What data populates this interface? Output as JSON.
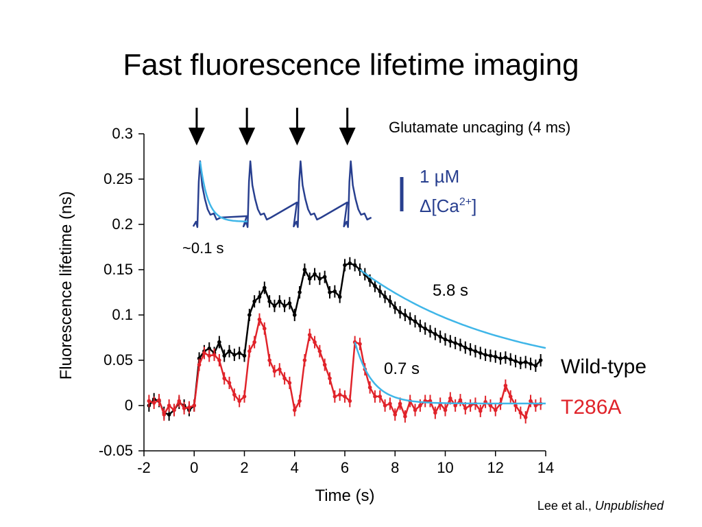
{
  "title": "Fast fluorescence lifetime imaging",
  "citation": {
    "authors": "Lee et al.,",
    "status": "Unpublished"
  },
  "colors": {
    "wild_type": "#000000",
    "t286a": "#e0232a",
    "calcium": "#283f8f",
    "fit": "#3fb6e8"
  },
  "chart_data": {
    "type": "line",
    "xlabel": "Time (s)",
    "ylabel": "Fluorescence lifetime (ns)",
    "xlim": [
      -2,
      14
    ],
    "ylim": [
      -0.05,
      0.3
    ],
    "xticks": [
      "-2",
      "0",
      "2",
      "4",
      "6",
      "8",
      "10",
      "12",
      "14"
    ],
    "yticks": [
      "-0.05",
      "0",
      "0.05",
      "0.1",
      "0.15",
      "0.2",
      "0.25",
      "0.3"
    ],
    "stimulus_label": "Glutamate uncaging (4 ms)",
    "stimulus_times": [
      0.1,
      2.1,
      4.1,
      6.1
    ],
    "calcium_scale": {
      "line1": "1 µM",
      "line2_prefix": "Δ[Ca",
      "line2_sup": "2+",
      "line2_suffix": "]"
    },
    "annotations": {
      "inset_time": "~0.1 s",
      "wt_tau": "5.8 s",
      "t286a_tau": "0.7 s"
    },
    "series": [
      {
        "name": "Wild-type",
        "color": "#000000",
        "x": [
          -1.8,
          -1.6,
          -1.4,
          -1.2,
          -1.0,
          -0.8,
          -0.6,
          -0.4,
          -0.2,
          0.0,
          0.2,
          0.4,
          0.6,
          0.8,
          1.0,
          1.2,
          1.4,
          1.6,
          1.8,
          2.0,
          2.2,
          2.4,
          2.6,
          2.8,
          3.0,
          3.2,
          3.4,
          3.6,
          3.8,
          4.0,
          4.2,
          4.4,
          4.6,
          4.8,
          5.0,
          5.2,
          5.4,
          5.6,
          5.8,
          6.0,
          6.2,
          6.4,
          6.6,
          6.8,
          7.0,
          7.2,
          7.4,
          7.6,
          7.8,
          8.0,
          8.2,
          8.4,
          8.6,
          8.8,
          9.0,
          9.2,
          9.4,
          9.6,
          9.8,
          10.0,
          10.2,
          10.4,
          10.6,
          10.8,
          11.0,
          11.2,
          11.4,
          11.6,
          11.8,
          12.0,
          12.2,
          12.4,
          12.6,
          12.8,
          13.0,
          13.2,
          13.4,
          13.6,
          13.8
        ],
        "y": [
          0.0,
          0.007,
          0.005,
          -0.008,
          -0.01,
          -0.005,
          0.003,
          0.0,
          -0.005,
          0.0,
          0.052,
          0.06,
          0.063,
          0.058,
          0.07,
          0.055,
          0.06,
          0.056,
          0.058,
          0.055,
          0.1,
          0.115,
          0.12,
          0.13,
          0.115,
          0.11,
          0.115,
          0.11,
          0.113,
          0.1,
          0.125,
          0.15,
          0.14,
          0.145,
          0.14,
          0.142,
          0.125,
          0.126,
          0.12,
          0.155,
          0.157,
          0.155,
          0.15,
          0.145,
          0.138,
          0.132,
          0.126,
          0.12,
          0.115,
          0.108,
          0.103,
          0.1,
          0.096,
          0.093,
          0.088,
          0.085,
          0.082,
          0.079,
          0.076,
          0.073,
          0.071,
          0.069,
          0.067,
          0.064,
          0.062,
          0.06,
          0.058,
          0.056,
          0.055,
          0.054,
          0.052,
          0.053,
          0.051,
          0.049,
          0.047,
          0.048,
          0.046,
          0.044,
          0.05
        ],
        "tau_label": "5.8 s"
      },
      {
        "name": "T286A",
        "color": "#e0232a",
        "x": [
          -1.8,
          -1.6,
          -1.4,
          -1.2,
          -1.0,
          -0.8,
          -0.6,
          -0.4,
          -0.2,
          0.0,
          0.2,
          0.4,
          0.6,
          0.8,
          1.0,
          1.2,
          1.4,
          1.6,
          1.8,
          2.0,
          2.2,
          2.4,
          2.6,
          2.8,
          3.0,
          3.2,
          3.4,
          3.6,
          3.8,
          4.0,
          4.2,
          4.4,
          4.6,
          4.8,
          5.0,
          5.2,
          5.4,
          5.6,
          5.8,
          6.0,
          6.2,
          6.4,
          6.6,
          6.8,
          7.0,
          7.2,
          7.4,
          7.6,
          7.8,
          8.0,
          8.2,
          8.4,
          8.6,
          8.8,
          9.0,
          9.2,
          9.4,
          9.6,
          9.8,
          10.0,
          10.2,
          10.4,
          10.6,
          10.8,
          11.0,
          11.2,
          11.4,
          11.6,
          11.8,
          12.0,
          12.2,
          12.4,
          12.6,
          12.8,
          13.0,
          13.2,
          13.4,
          13.6,
          13.8
        ],
        "y": [
          0.005,
          0.003,
          0.006,
          -0.01,
          0.0,
          -0.005,
          0.005,
          -0.003,
          -0.002,
          0.0,
          0.045,
          0.058,
          0.055,
          0.056,
          0.05,
          0.03,
          0.025,
          0.012,
          0.005,
          0.01,
          0.06,
          0.07,
          0.095,
          0.085,
          0.05,
          0.038,
          0.04,
          0.03,
          0.025,
          -0.005,
          0.005,
          0.05,
          0.078,
          0.07,
          0.06,
          0.045,
          0.03,
          0.01,
          0.012,
          0.01,
          0.005,
          0.07,
          0.068,
          0.04,
          0.02,
          0.01,
          0.01,
          0.0,
          0.002,
          -0.01,
          0.002,
          -0.012,
          0.005,
          -0.005,
          0.0,
          0.005,
          0.005,
          -0.008,
          0.002,
          -0.005,
          0.008,
          0.0,
          0.006,
          -0.003,
          0.0,
          0.002,
          -0.006,
          0.004,
          0.0,
          -0.005,
          0.002,
          0.022,
          0.01,
          0.0,
          -0.008,
          -0.013,
          0.005,
          0.0,
          0.002
        ],
        "tau_label": "0.7 s"
      }
    ],
    "fits": [
      {
        "series": "Wild-type",
        "t_start": 6.6,
        "t_end": 14.0,
        "tau_s": 5.8
      },
      {
        "series": "T286A",
        "t_start": 6.4,
        "t_end": 14.0,
        "tau_s": 0.7
      }
    ]
  }
}
